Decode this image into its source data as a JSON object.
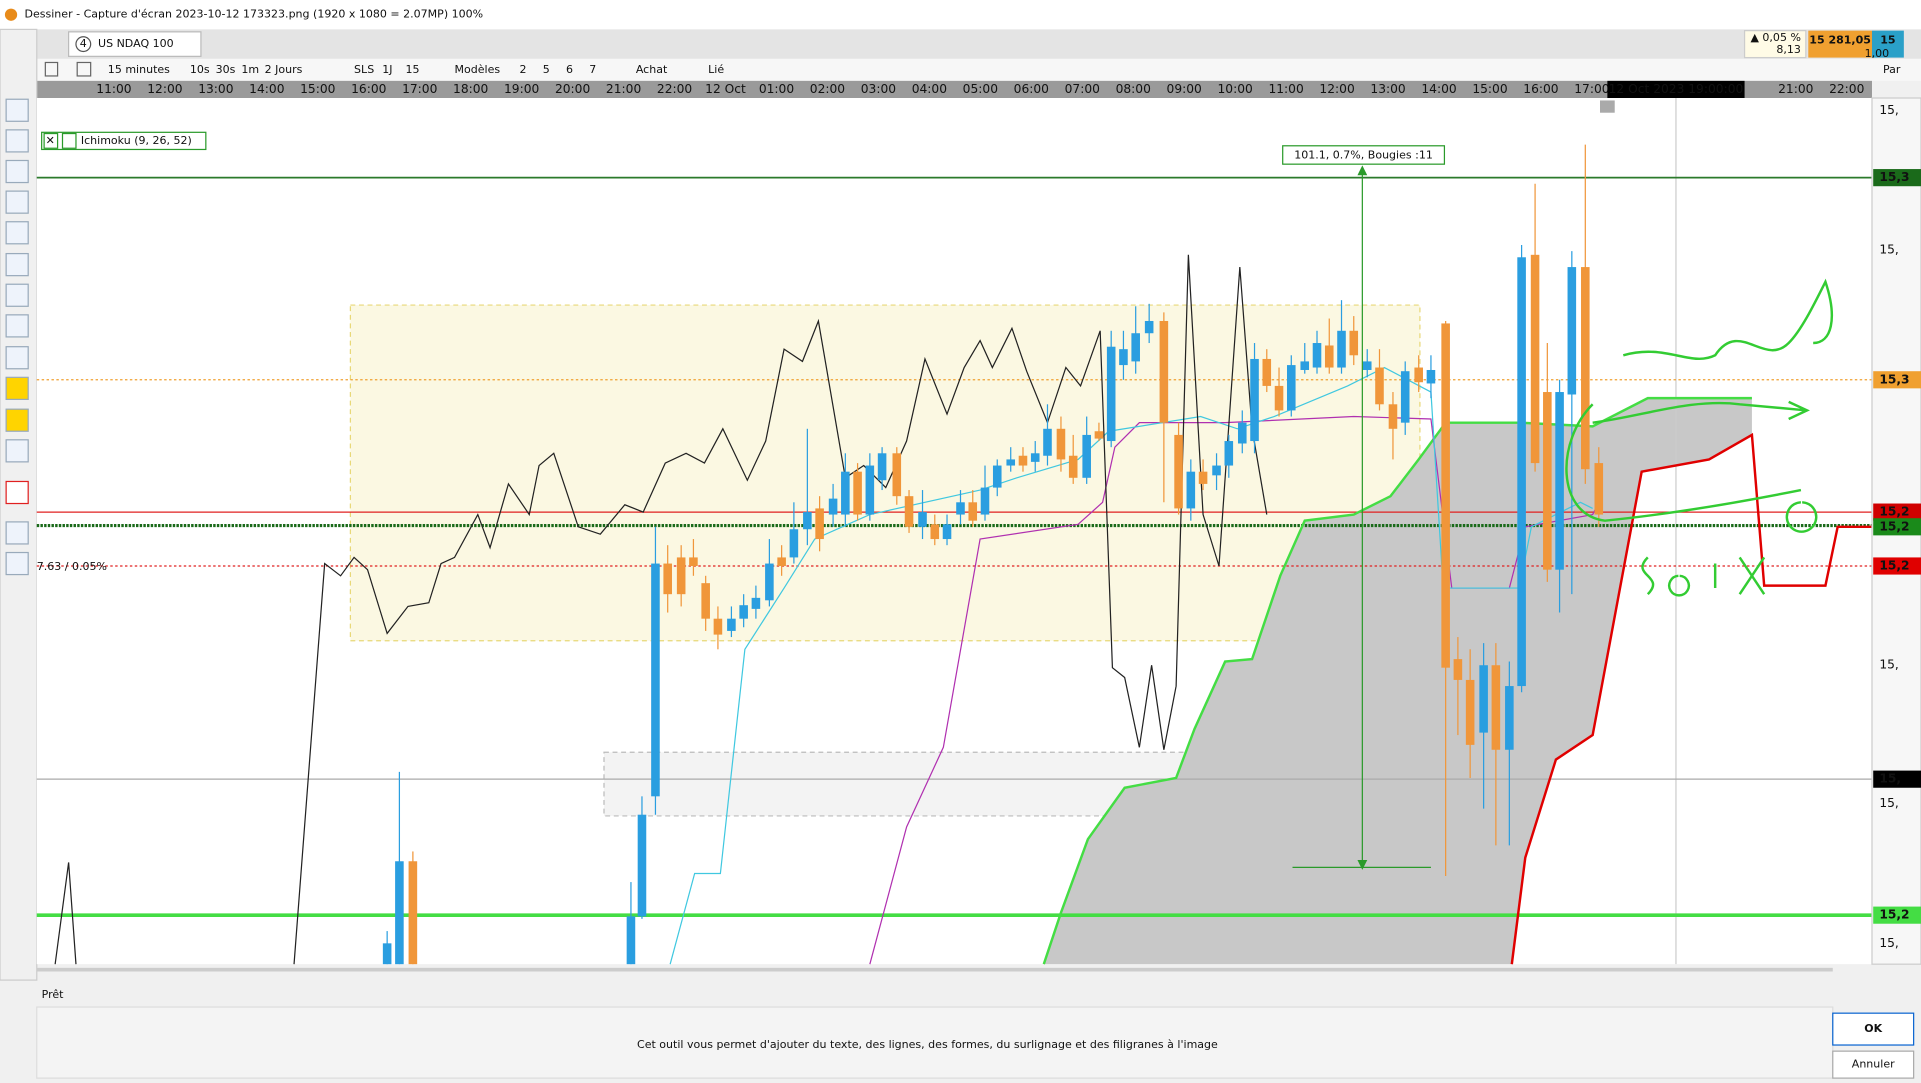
{
  "window": {
    "title": "Dessiner  -  Capture d'écran 2023-10-12 173323.png  (1920 x 1080 = 2.07MP)    100%"
  },
  "tab": {
    "number": "4",
    "symbol": "US NDAQ 100"
  },
  "quote": {
    "change_pct": "▲ 0,05 %",
    "change": "8,13",
    "price": "15 281,05",
    "price_right": "15",
    "ratio": "1,00"
  },
  "toolbar": {
    "interval": "15 minutes",
    "shortcuts": [
      "10s",
      "30s",
      "1m"
    ],
    "range": "2 Jours",
    "range_shortcuts": [
      "SLS",
      "1J",
      "15"
    ],
    "models": "Modèles",
    "layouts": [
      "2",
      "5",
      "6",
      "7"
    ],
    "buy": "Achat",
    "linked": "Lié",
    "params": "Par"
  },
  "time_axis": {
    "labels": [
      "11:00",
      "12:00",
      "13:00",
      "14:00",
      "15:00",
      "16:00",
      "17:00",
      "18:00",
      "19:00",
      "20:00",
      "21:00",
      "22:00",
      "12 Oct",
      "01:00",
      "02:00",
      "03:00",
      "04:00",
      "05:00",
      "06:00",
      "07:00",
      "08:00",
      "09:00",
      "10:00",
      "11:00",
      "12:00",
      "13:00",
      "14:00",
      "15:00",
      "16:00",
      "17:00"
    ],
    "cursor": "12 Oct 2023 19:00:00",
    "labels_after": [
      "21:00",
      "22:00"
    ]
  },
  "chart": {
    "indicator": "Ichimoku (9, 26, 52)",
    "measure": "101.1, 0.7%, Bougies :11",
    "line_label": "7.63 / 0.05%",
    "price_labels": [
      "15,",
      "15,3",
      "15,",
      "15,3",
      "15,2",
      "15,2",
      "15,2",
      "15,",
      "15,",
      "15,",
      "15,2",
      "15,"
    ]
  },
  "status": {
    "state": "Prêt",
    "hint": "Cet outil vous permet d'ajouter du texte, des lignes, des formes, du surlignage et des filigranes à l'image"
  },
  "buttons": {
    "ok": "OK",
    "cancel": "Annuler"
  }
}
